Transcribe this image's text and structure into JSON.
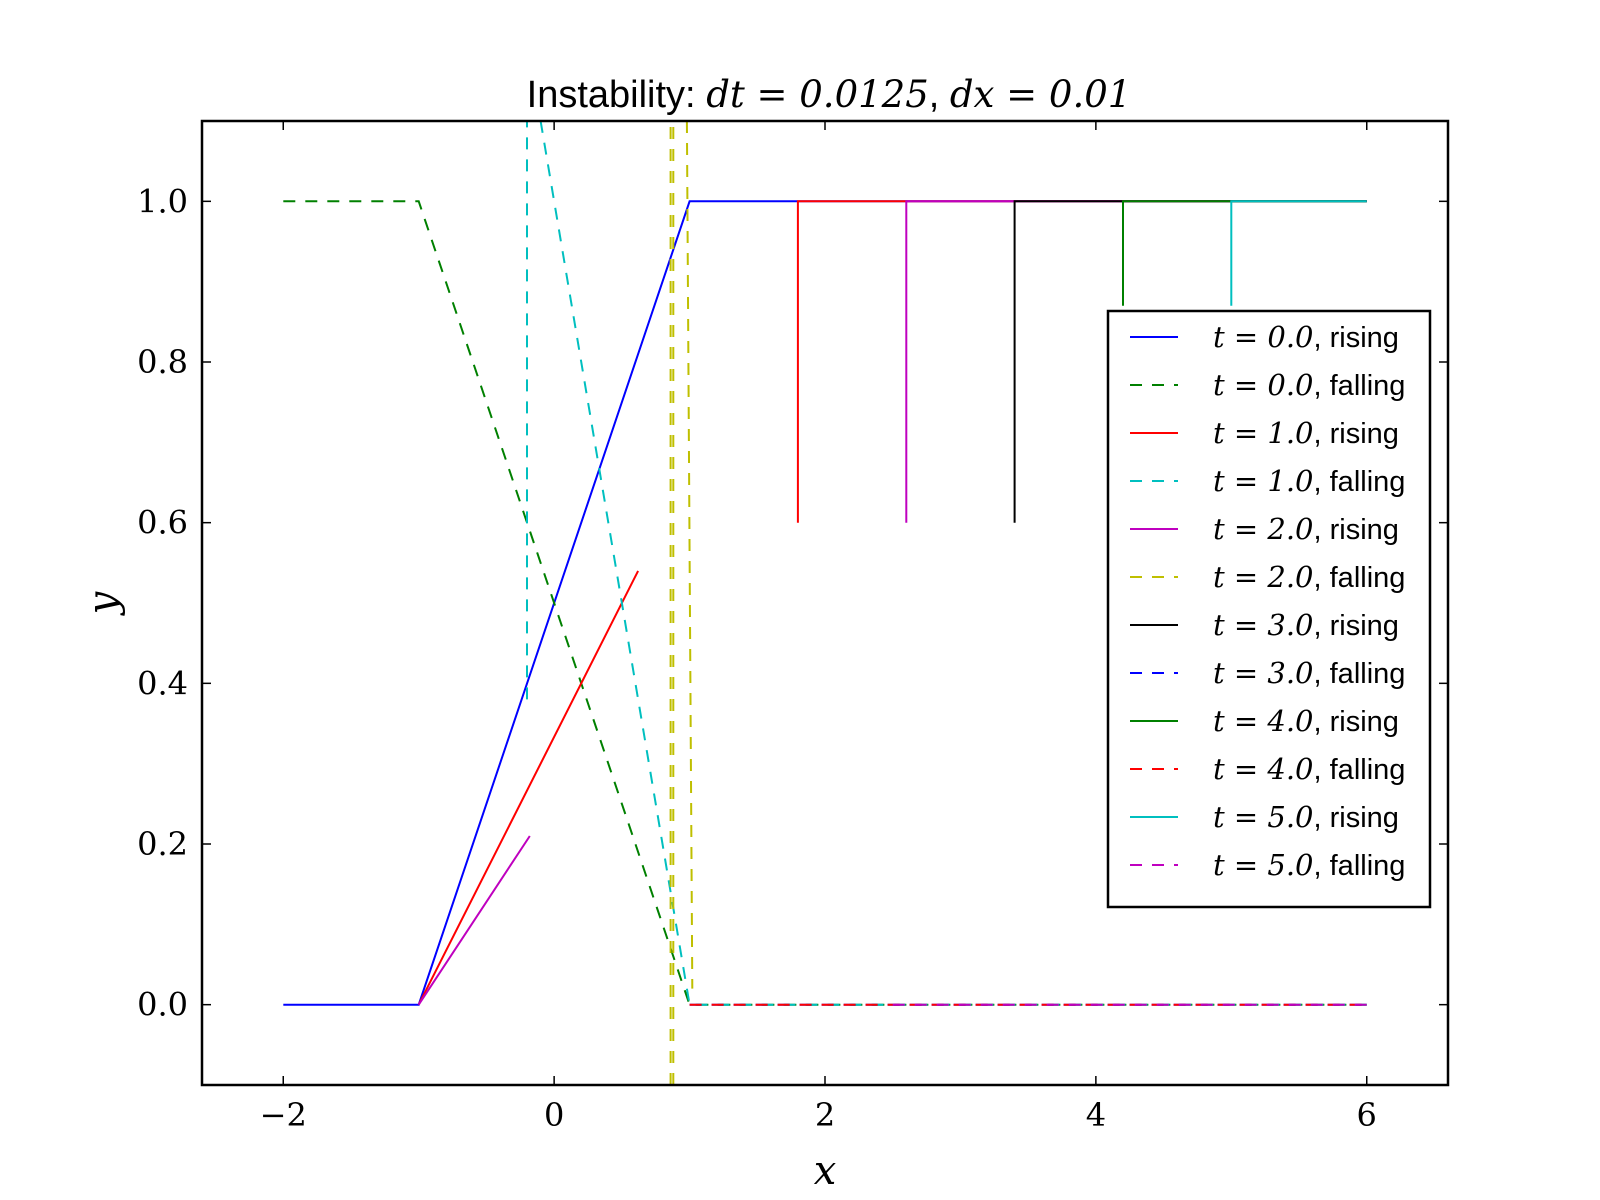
{
  "chart_data": {
    "type": "line",
    "title": {
      "prefix": "Instability: ",
      "math1": "dt = 0.0125",
      "sep": ", ",
      "math2": "dx = 0.01"
    },
    "xlabel": "x",
    "ylabel": "y",
    "xlim": [
      -2.6,
      6.6
    ],
    "ylim": [
      -0.1,
      1.1
    ],
    "xticks": [
      -2,
      0,
      2,
      4,
      6
    ],
    "xtick_labels": [
      "−2",
      "0",
      "2",
      "4",
      "6"
    ],
    "yticks": [
      0.0,
      0.2,
      0.4,
      0.6,
      0.8,
      1.0
    ],
    "ytick_labels": [
      "0.0",
      "0.2",
      "0.4",
      "0.6",
      "0.8",
      "1.0"
    ],
    "grid": false,
    "legend_position": "right",
    "series": [
      {
        "name": "t = 0.0, rising",
        "label_math": "t = 0.0",
        "label_text": ", rising",
        "color": "#0000ff",
        "dash": "solid",
        "x": [
          -2,
          -1,
          1,
          6
        ],
        "y": [
          0,
          0,
          1,
          1
        ]
      },
      {
        "name": "t = 0.0, falling",
        "label_math": "t = 0.0",
        "label_text": ", falling",
        "color": "#008000",
        "dash": "dashed",
        "x": [
          -2,
          -1,
          1,
          6
        ],
        "y": [
          1,
          1,
          0,
          0
        ]
      },
      {
        "name": "t = 1.0, rising",
        "label_math": "t = 1.0",
        "label_text": ", rising",
        "color": "#ff0000",
        "dash": "solid",
        "x": [
          -1,
          0.62,
          null,
          1.8,
          1.8,
          6
        ],
        "y": [
          0,
          0.54,
          null,
          0.6,
          1,
          1
        ]
      },
      {
        "name": "t = 1.0, falling",
        "label_math": "t = 1.0",
        "label_text": ", falling",
        "color": "#00bfbf",
        "dash": "dashed",
        "x": [
          -0.2,
          -0.2,
          null,
          -0.1,
          1,
          6
        ],
        "y": [
          0.38,
          1.1,
          null,
          1.1,
          0,
          0
        ]
      },
      {
        "name": "t = 2.0, rising",
        "label_math": "t = 2.0",
        "label_text": ", rising",
        "color": "#bf00bf",
        "dash": "solid",
        "x": [
          -1,
          -0.18,
          null,
          2.6,
          2.6,
          6
        ],
        "y": [
          0,
          0.21,
          null,
          0.6,
          1,
          1
        ]
      },
      {
        "name": "t = 2.0, falling",
        "label_math": "t = 2.0",
        "label_text": ", falling",
        "color": "#bfbf00",
        "dash": "dashed",
        "x": [
          0.86,
          0.86,
          null,
          0.88,
          0.88,
          null,
          0.98,
          1.02
        ],
        "y": [
          -0.1,
          1.1,
          null,
          -0.1,
          1.1,
          null,
          1.1,
          0.02
        ]
      },
      {
        "name": "t = 3.0, rising",
        "label_math": "t = 3.0",
        "label_text": ", rising",
        "color": "#000000",
        "dash": "solid",
        "x": [
          3.4,
          3.4,
          6
        ],
        "y": [
          0.6,
          1,
          1
        ]
      },
      {
        "name": "t = 3.0, falling",
        "label_math": "t = 3.0",
        "label_text": ", falling",
        "color": "#0000ff",
        "dash": "dashed",
        "x": [
          1,
          6
        ],
        "y": [
          0,
          0
        ]
      },
      {
        "name": "t = 4.0, rising",
        "label_math": "t = 4.0",
        "label_text": ", rising",
        "color": "#008000",
        "dash": "solid",
        "x": [
          4.2,
          4.2,
          6
        ],
        "y": [
          0.87,
          1,
          1
        ]
      },
      {
        "name": "t = 4.0, falling",
        "label_math": "t = 4.0",
        "label_text": ", falling",
        "color": "#ff0000",
        "dash": "dashed",
        "x": [
          1,
          6
        ],
        "y": [
          0,
          0
        ]
      },
      {
        "name": "t = 5.0, rising",
        "label_math": "t = 5.0",
        "label_text": ", rising",
        "color": "#00bfbf",
        "dash": "solid",
        "x": [
          5,
          5,
          6
        ],
        "y": [
          0.87,
          1,
          1
        ]
      },
      {
        "name": "t = 5.0, falling",
        "label_math": "t = 5.0",
        "label_text": ", falling",
        "color": "#bf00bf",
        "dash": "dashed",
        "x": [
          2.5,
          6
        ],
        "y": [
          0,
          0
        ]
      }
    ]
  }
}
